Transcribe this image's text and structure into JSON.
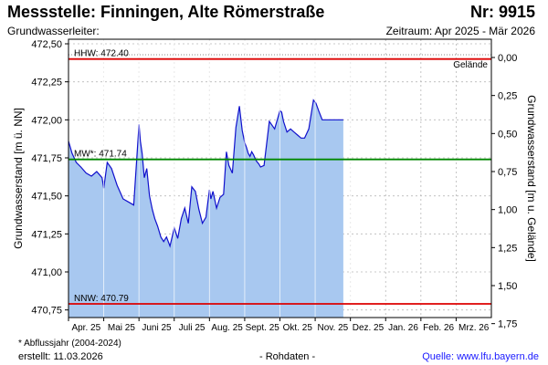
{
  "header": {
    "title": "Messstelle: Finningen, Alte Römerstraße",
    "number": "Nr: 9915",
    "aquifer": "Grundwasserleiter:",
    "period": "Zeitraum: Apr 2025 - Mär 2026"
  },
  "footer": {
    "footnote": "* Abflussjahr (2004-2024)",
    "created": "erstellt:  11.03.2026",
    "rawdata": "- Rohdaten -",
    "source": "Quelle: www.lfu.bayern.de"
  },
  "colors": {
    "fill": "#a8c8f0",
    "line": "#1010cc",
    "threshold": "#dd0000",
    "mean": "#008800",
    "grid": "#b8b8b8"
  },
  "chart_data": {
    "type": "area",
    "ylabel": "Grundwasserstand [m ü. NN]",
    "y2label": "Grundwasserstand [m u. Gelände]",
    "ylim": [
      470.7,
      472.53
    ],
    "yticks": [
      "472,50",
      "472,25",
      "472,00",
      "471,75",
      "471,50",
      "471,25",
      "471,00",
      "470,75"
    ],
    "y2ticks": [
      "0,00",
      "0,25",
      "0,50",
      "0,75",
      "1,00",
      "1,25",
      "1,50",
      "1,75"
    ],
    "gelaende": 472.41,
    "x_months": [
      "Apr. 25",
      "Mai 25",
      "Juni 25",
      "Juli 25",
      "Aug. 25",
      "Sept. 25",
      "Okt. 25",
      "Nov. 25",
      "Dez. 25",
      "Jan. 26",
      "Feb. 26",
      "Mrz. 26"
    ],
    "reference_lines": [
      {
        "label": "HHW: 472.40",
        "value": 472.4,
        "color": "#dd0000"
      },
      {
        "label": "MW*: 471.74",
        "value": 471.74,
        "color": "#008800"
      },
      {
        "label": "NNW: 470.79",
        "value": 470.79,
        "color": "#dd0000"
      }
    ],
    "ground_label": "Gelände",
    "series": [
      {
        "x": [
          0.0,
          0.1,
          0.22,
          0.35,
          0.5,
          0.65,
          0.8,
          0.95,
          1.0,
          1.1,
          1.22,
          1.38,
          1.55,
          1.7,
          1.85,
          2.0,
          2.04,
          2.09,
          2.15,
          2.22,
          2.3,
          2.38,
          2.45,
          2.53,
          2.62,
          2.7,
          2.78,
          2.88,
          3.0,
          3.1,
          3.2,
          3.3,
          3.4,
          3.5,
          3.6,
          3.7,
          3.8,
          3.9,
          4.0,
          4.04,
          4.1,
          4.2,
          4.3,
          4.4,
          4.48,
          4.55,
          4.65,
          4.75,
          4.85,
          4.93,
          5.0,
          5.05,
          5.1,
          5.15,
          5.2,
          5.25,
          5.33,
          5.4,
          5.45,
          5.55,
          5.7,
          5.85,
          6.0,
          6.05,
          6.1,
          6.2,
          6.3,
          6.4,
          6.5,
          6.6,
          6.7,
          6.82,
          6.95,
          7.02,
          7.1,
          7.2,
          7.3,
          7.4,
          7.5,
          7.6,
          7.7,
          7.8
        ],
        "values": [
          471.86,
          471.78,
          471.72,
          471.69,
          471.65,
          471.63,
          471.66,
          471.62,
          471.55,
          471.72,
          471.68,
          471.57,
          471.48,
          471.46,
          471.44,
          471.97,
          471.86,
          471.78,
          471.62,
          471.68,
          471.5,
          471.41,
          471.35,
          471.3,
          471.23,
          471.2,
          471.23,
          471.17,
          471.29,
          471.22,
          471.35,
          471.42,
          471.32,
          471.56,
          471.53,
          471.41,
          471.32,
          471.36,
          471.54,
          471.48,
          471.53,
          471.42,
          471.49,
          471.51,
          471.79,
          471.7,
          471.65,
          471.95,
          472.09,
          471.93,
          471.85,
          471.82,
          471.78,
          471.76,
          471.79,
          471.77,
          471.73,
          471.71,
          471.69,
          471.7,
          471.99,
          471.94,
          472.06,
          472.05,
          471.99,
          471.92,
          471.94,
          471.92,
          471.9,
          471.88,
          471.88,
          471.94,
          472.13,
          472.11,
          472.06,
          472.0,
          472.0,
          472.0,
          472.0,
          472.0,
          472.0,
          472.0
        ]
      }
    ]
  }
}
